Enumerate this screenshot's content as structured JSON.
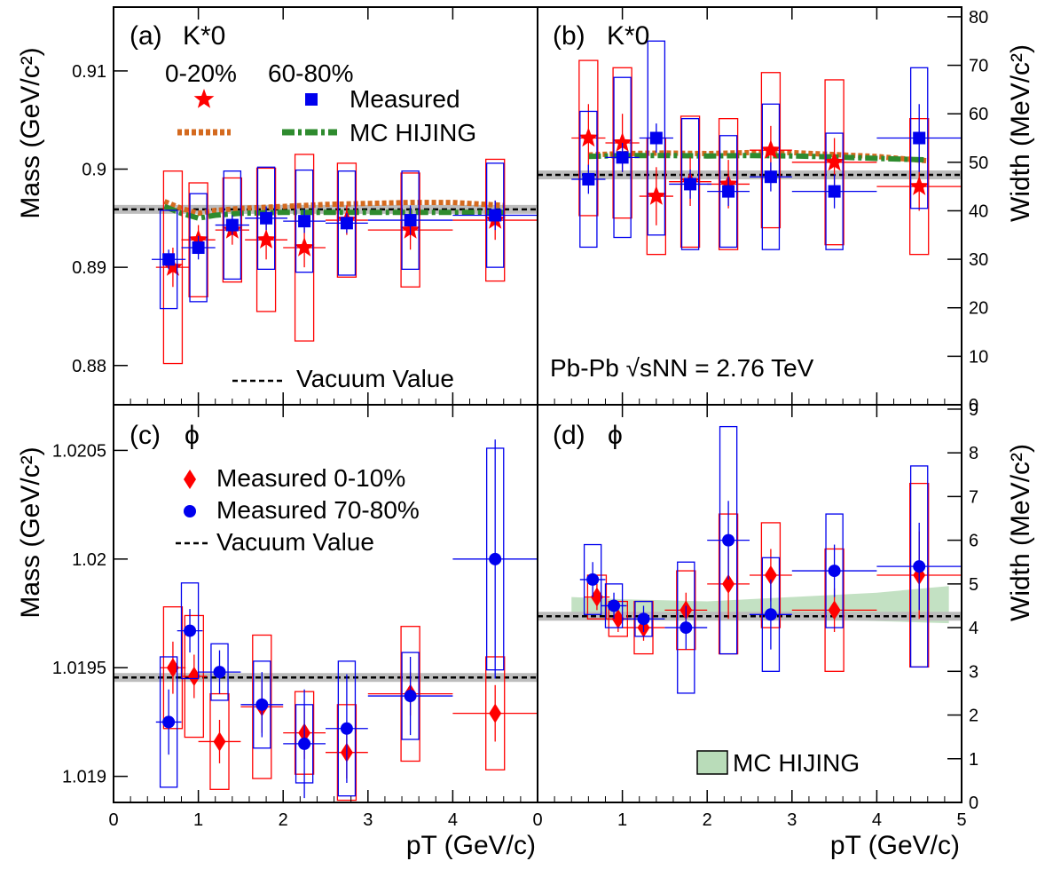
{
  "colors": {
    "red": "#ff0000",
    "blue": "#0000ee",
    "orange": "#d46a1f",
    "green": "#2e8b2e",
    "band": "#b9dcb9",
    "vacuum_band": "#bdbdbd"
  },
  "axes": {
    "left_top_ylabel": "Mass (GeV/c²)",
    "left_bottom_ylabel": "Mass (GeV/c²)",
    "right_top_ylabel": "Width (MeV/c²)",
    "right_bottom_ylabel": "Width (MeV/c²)",
    "xlabel_left": "pT (GeV/c)",
    "xlabel_right": "pT (GeV/c)"
  },
  "text": {
    "panel_a": "(a)",
    "panel_b": "(b)",
    "panel_c": "(c)",
    "panel_d": "(d)",
    "kstar": "K*0",
    "phi": "ϕ",
    "cent_0_20": "0-20%",
    "cent_60_80": "60-80%",
    "measured": "Measured",
    "mc_hijing": "MC HIJING",
    "vacuum_value": "Vacuum Value",
    "measured_0_10": "Measured 0-10%",
    "measured_70_80": "Measured 70-80%",
    "collision": "Pb-Pb √sNN = 2.76 TeV"
  },
  "chart_data": [
    {
      "panel": "a",
      "type": "scatter",
      "title": "K*0 mass",
      "xlim": [
        0,
        5
      ],
      "ylim": [
        0.876,
        0.9165
      ],
      "xticks": [
        0,
        1,
        2,
        3,
        4
      ],
      "yticks": [
        0.88,
        0.89,
        0.9,
        0.91
      ],
      "ytick_labels": [
        "0.88",
        "0.89",
        "0.9",
        "0.91"
      ],
      "vacuum": 0.8959,
      "series": [
        {
          "name": "0-20%",
          "marker": "star",
          "color": "red",
          "x": [
            0.7,
            1.0,
            1.4,
            1.8,
            2.25,
            2.75,
            3.5,
            4.5
          ],
          "y": [
            0.89,
            0.8928,
            0.8938,
            0.8928,
            0.892,
            0.8948,
            0.8938,
            0.8948
          ],
          "xerr": [
            0.2,
            0.2,
            0.2,
            0.25,
            0.25,
            0.25,
            0.5,
            0.5
          ],
          "yerr": [
            0.002,
            0.0015,
            0.0015,
            0.002,
            0.002,
            0.0015,
            0.002,
            0.002
          ],
          "sys": [
            0.0098,
            0.0058,
            0.0053,
            0.0073,
            0.0095,
            0.0058,
            0.0058,
            0.0062
          ]
        },
        {
          "name": "60-80%",
          "marker": "square",
          "color": "blue",
          "x": [
            0.65,
            1.0,
            1.4,
            1.8,
            2.25,
            2.75,
            3.5,
            4.5
          ],
          "y": [
            0.8908,
            0.892,
            0.8943,
            0.895,
            0.8947,
            0.8945,
            0.8948,
            0.8953
          ],
          "xerr": [
            0.2,
            0.2,
            0.2,
            0.25,
            0.25,
            0.25,
            0.5,
            0.5
          ],
          "yerr": [
            0.001,
            0.0012,
            0.001,
            0.0012,
            0.0012,
            0.001,
            0.0015,
            0.0015
          ],
          "sys": [
            0.005,
            0.0055,
            0.0055,
            0.0052,
            0.0052,
            0.0053,
            0.005,
            0.0053
          ]
        }
      ],
      "mc": [
        {
          "name": "MC HIJING 0-20%",
          "color": "orange",
          "style": "dotted",
          "x": [
            0.6,
            0.8,
            1.0,
            1.2,
            1.5,
            2.0,
            2.5,
            3.0,
            3.5,
            4.0,
            4.6
          ],
          "y": [
            0.8967,
            0.896,
            0.8955,
            0.8958,
            0.896,
            0.8962,
            0.8964,
            0.8965,
            0.8966,
            0.8966,
            0.8963
          ]
        },
        {
          "name": "MC HIJING 60-80%",
          "color": "green",
          "style": "dashdot",
          "x": [
            0.6,
            0.8,
            1.0,
            1.2,
            1.5,
            2.0,
            2.5,
            3.0,
            3.5,
            4.0,
            4.6
          ],
          "y": [
            0.8962,
            0.8955,
            0.895,
            0.8953,
            0.8955,
            0.8956,
            0.8956,
            0.8956,
            0.8956,
            0.8956,
            0.8956
          ]
        }
      ]
    },
    {
      "panel": "b",
      "type": "scatter",
      "title": "K*0 width",
      "xlim": [
        0,
        5
      ],
      "ylim": [
        0,
        82
      ],
      "xticks": [
        0,
        1,
        2,
        3,
        4
      ],
      "yticks": [
        0,
        10,
        20,
        30,
        40,
        50,
        60,
        70,
        80
      ],
      "vacuum": 47.4,
      "series": [
        {
          "name": "0-20%",
          "marker": "star",
          "color": "red",
          "x": [
            0.6,
            1.0,
            1.4,
            1.8,
            2.25,
            2.75,
            3.5,
            4.5
          ],
          "y": [
            55,
            54,
            43,
            46,
            45.5,
            52.5,
            50,
            45
          ],
          "xerr": [
            0.2,
            0.2,
            0.2,
            0.25,
            0.25,
            0.25,
            0.5,
            0.5
          ],
          "yerr": [
            7,
            6,
            6,
            5,
            5,
            5,
            5,
            5
          ],
          "sys": [
            16,
            15.5,
            12,
            13.5,
            13.5,
            16,
            17,
            14
          ]
        },
        {
          "name": "60-80%",
          "marker": "square",
          "color": "blue",
          "x": [
            0.6,
            1.0,
            1.4,
            1.8,
            2.25,
            2.75,
            3.5,
            4.5
          ],
          "y": [
            46.5,
            51,
            55,
            45.5,
            44,
            47,
            44,
            55
          ],
          "xerr": [
            0.2,
            0.2,
            0.2,
            0.25,
            0.25,
            0.25,
            0.5,
            0.5
          ],
          "yerr": [
            3,
            3,
            3,
            3,
            3,
            3,
            3.5,
            7
          ],
          "sys": [
            14,
            16.5,
            20,
            13.5,
            11.5,
            15,
            12,
            14.5
          ]
        }
      ],
      "mc": [
        {
          "name": "MC HIJING 0-20%",
          "color": "orange",
          "style": "dotted",
          "x": [
            0.6,
            1.0,
            1.5,
            2.0,
            2.5,
            3.0,
            3.5,
            4.0,
            4.6
          ],
          "y": [
            51.5,
            51.8,
            51.9,
            51.8,
            52.0,
            52.0,
            51.6,
            51.2,
            50.3
          ]
        },
        {
          "name": "MC HIJING 60-80%",
          "color": "green",
          "style": "dashdot",
          "x": [
            0.6,
            1.0,
            1.5,
            2.0,
            2.5,
            3.0,
            3.5,
            4.0,
            4.6
          ],
          "y": [
            51.2,
            51.4,
            51.4,
            51.3,
            51.4,
            51.3,
            51.1,
            50.8,
            50.5
          ]
        }
      ]
    },
    {
      "panel": "c",
      "type": "scatter",
      "title": "phi mass",
      "xlim": [
        0,
        5
      ],
      "ylim": [
        1.01888,
        1.02071
      ],
      "xticks": [
        0,
        1,
        2,
        3,
        4
      ],
      "yticks": [
        1.019,
        1.0195,
        1.02,
        1.0205
      ],
      "ytick_labels": [
        "1.019",
        "1.0195",
        "1.02",
        "1.0205"
      ],
      "vacuum": 1.019455,
      "series": [
        {
          "name": "Measured 0-10%",
          "marker": "diamond",
          "color": "red",
          "x": [
            0.7,
            0.95,
            1.25,
            1.75,
            2.25,
            2.75,
            3.5,
            4.5
          ],
          "y": [
            1.0195,
            1.01946,
            1.01916,
            1.01932,
            1.0192,
            1.01911,
            1.01938,
            1.01929
          ],
          "xerr": [
            0.15,
            0.15,
            0.25,
            0.25,
            0.25,
            0.25,
            0.5,
            0.5
          ],
          "yerr": [
            0.00012,
            0.0001,
            0.0001,
            0.00012,
            0.00012,
            0.00012,
            0.0001,
            0.00013
          ],
          "sys": [
            0.00028,
            0.00028,
            0.00022,
            0.00033,
            0.00019,
            0.00022,
            0.00031,
            0.00026
          ]
        },
        {
          "name": "Measured 70-80%",
          "marker": "circle",
          "color": "blue",
          "x": [
            0.65,
            0.9,
            1.25,
            1.75,
            2.25,
            2.75,
            3.5,
            4.5
          ],
          "y": [
            1.01925,
            1.01967,
            1.01948,
            1.01933,
            1.01915,
            1.01922,
            1.01937,
            1.02
          ],
          "xerr": [
            0.15,
            0.15,
            0.25,
            0.25,
            0.25,
            0.25,
            0.5,
            0.5
          ],
          "yerr": [
            0.00015,
            0.0001,
            0.0001,
            0.00015,
            0.00025,
            0.00025,
            0.00018,
            0.00055
          ],
          "sys": [
            0.0003,
            0.00022,
            0.00013,
            0.0002,
            0.00018,
            0.00031,
            0.0002,
            0.00051
          ]
        }
      ]
    },
    {
      "panel": "d",
      "type": "scatter",
      "title": "phi width",
      "xlim": [
        0,
        5
      ],
      "ylim": [
        0,
        9.1
      ],
      "xticks": [
        0,
        1,
        2,
        3,
        4,
        5
      ],
      "yticks": [
        0,
        1,
        2,
        3,
        4,
        5,
        6,
        7,
        8,
        9
      ],
      "vacuum": 4.26,
      "series": [
        {
          "name": "Measured 0-10%",
          "marker": "diamond",
          "color": "red",
          "x": [
            0.7,
            0.95,
            1.25,
            1.75,
            2.25,
            2.75,
            3.5,
            4.5
          ],
          "y": [
            4.7,
            4.2,
            4.0,
            4.4,
            5.0,
            5.2,
            4.4,
            5.2
          ],
          "xerr": [
            0.15,
            0.15,
            0.25,
            0.25,
            0.25,
            0.25,
            0.5,
            0.5
          ],
          "yerr": [
            0.3,
            0.3,
            0.3,
            0.4,
            0.8,
            0.6,
            0.5,
            1.0
          ],
          "sys": [
            0.5,
            0.4,
            0.6,
            0.9,
            1.6,
            1.2,
            1.4,
            2.1
          ]
        },
        {
          "name": "Measured 70-80%",
          "marker": "circle",
          "color": "blue",
          "x": [
            0.65,
            0.9,
            1.25,
            1.75,
            2.25,
            2.75,
            3.5,
            4.5
          ],
          "y": [
            5.1,
            4.5,
            4.2,
            4.0,
            6.0,
            4.3,
            5.3,
            5.4
          ],
          "xerr": [
            0.15,
            0.15,
            0.25,
            0.25,
            0.25,
            0.25,
            0.5,
            0.5
          ],
          "yerr": [
            0.4,
            0.3,
            0.3,
            0.5,
            0.9,
            0.8,
            0.6,
            1.0
          ],
          "sys": [
            0.8,
            0.5,
            0.4,
            1.5,
            2.6,
            1.3,
            1.3,
            2.3
          ]
        }
      ],
      "band": {
        "name": "MC HIJING",
        "color": "band",
        "x": [
          0.4,
          1.0,
          2.0,
          3.0,
          4.0,
          4.85
        ],
        "lo": [
          4.3,
          4.3,
          4.25,
          4.2,
          4.15,
          4.1
        ],
        "hi": [
          4.7,
          4.65,
          4.6,
          4.7,
          4.8,
          4.95
        ]
      }
    }
  ]
}
